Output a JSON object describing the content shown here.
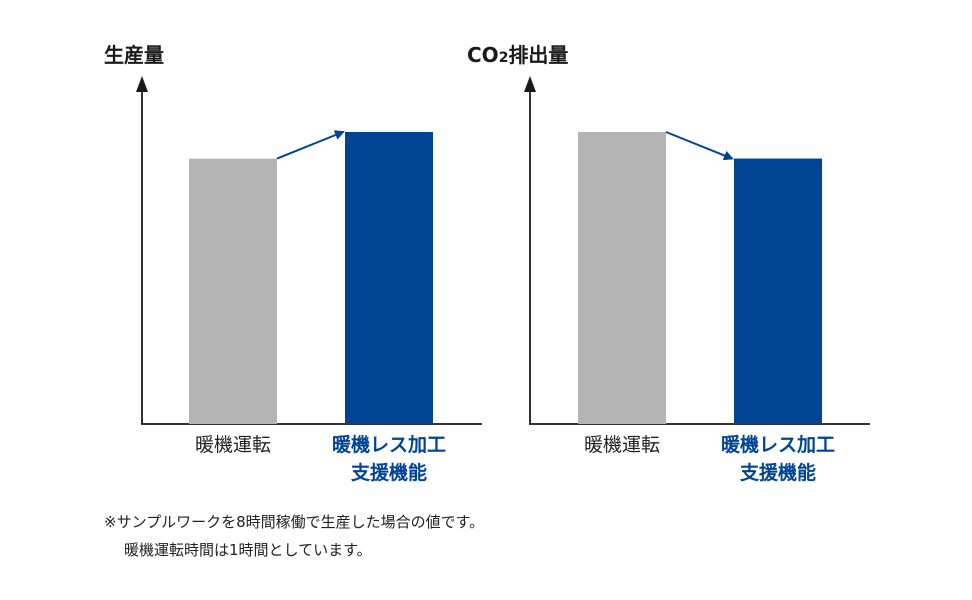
{
  "chart_data": [
    {
      "type": "bar",
      "title": "生産量",
      "categories": [
        "暖機運転",
        "暖機レス加工\n支援機能"
      ],
      "values": [
        100,
        110
      ],
      "colors": [
        "#b4b4b4",
        "#004494"
      ],
      "label_colors": [
        "#222222",
        "#004494"
      ],
      "annotation": "arrow between bar tops (increase)",
      "ylim": [
        0,
        110
      ],
      "grid": false
    },
    {
      "type": "bar",
      "title_parts": [
        "CO",
        "2",
        "排出量"
      ],
      "categories": [
        "暖機運転",
        "暖機レス加工\n支援機能"
      ],
      "values": [
        110,
        100
      ],
      "colors": [
        "#b4b4b4",
        "#004494"
      ],
      "label_colors": [
        "#222222",
        "#004494"
      ],
      "annotation": "arrow between bar tops (decrease)",
      "ylim": [
        0,
        110
      ],
      "grid": false
    }
  ],
  "notes": {
    "line1": "※サンプルワークを8時間稼働で生産した場合の値です。",
    "line2": "暖機運転時間は1時間としています。"
  },
  "colors": {
    "accent": "#004494",
    "baseline_bar": "#b4b4b4",
    "axis": "#1a1a1a"
  }
}
